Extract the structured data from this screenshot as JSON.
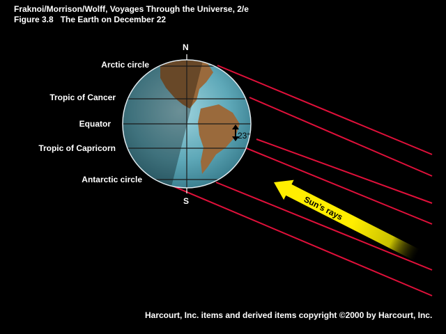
{
  "header": {
    "line1": "Fraknoi/Morrison/Wolff, Voyages Through the Universe, 2/e",
    "figure": "Figure 3.8",
    "caption": "The Earth on December 22"
  },
  "labels": {
    "north": "N",
    "south": "S",
    "arctic_circle": "Arctic circle",
    "tropic_cancer": "Tropic of Cancer",
    "equator": "Equator",
    "tropic_capricorn": "Tropic of Capricorn",
    "antarctic_circle": "Antarctic circle",
    "tilt_angle": "23°",
    "suns_rays": "Sun’s rays"
  },
  "footer": {
    "copyright": "Harcourt, Inc. items and derived items copyright ©2000 by Harcourt, Inc."
  },
  "colors": {
    "background": "#000000",
    "ray_line": "#e0103a",
    "arrow": "#f4e800",
    "ocean": "#5ea8b8",
    "land": "#9a6a3c",
    "night_side_tint": "rgba(0,0,0,0.32)"
  }
}
